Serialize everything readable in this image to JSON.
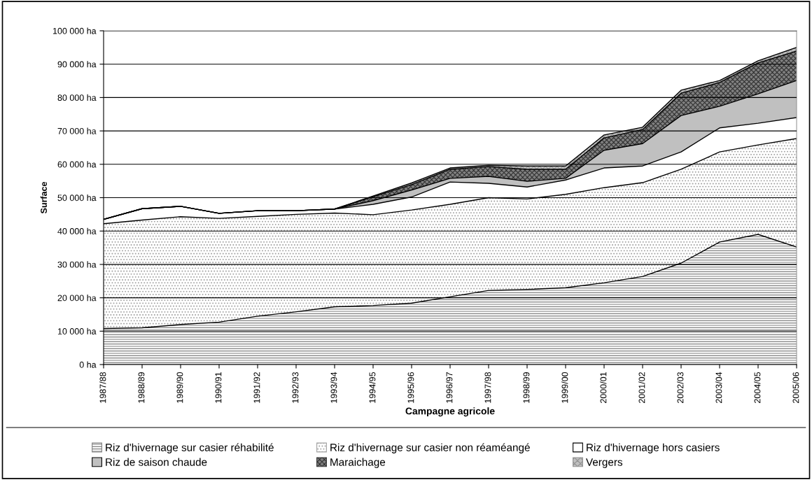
{
  "chart_data": {
    "type": "area",
    "stacked": true,
    "xlabel": "Campagne agricole",
    "ylabel": "Surface",
    "categories": [
      "1987/88",
      "1988/89",
      "1989/90",
      "1990/91",
      "1991/92",
      "1992/93",
      "1993/94",
      "1994/95",
      "1995/96",
      "1996/97",
      "1997/98",
      "1998/99",
      "1999/00",
      "2000/01",
      "2001/02",
      "2002/03",
      "2003/04",
      "2004/05",
      "2005/06"
    ],
    "series": [
      {
        "name": "Riz d'hivernage sur casier réhabilité",
        "color": "#ffffff",
        "values": [
          10800,
          11000,
          12000,
          12700,
          14500,
          15800,
          17300,
          17700,
          18400,
          20300,
          22200,
          22500,
          23000,
          24500,
          26400,
          30400,
          36700,
          39000,
          35200
        ]
      },
      {
        "name": "Riz d'hivernage sur casier non réaméangé",
        "color": "#ffffff",
        "values": [
          31400,
          32300,
          32300,
          31100,
          29900,
          29200,
          28100,
          27200,
          27900,
          27700,
          27800,
          27100,
          28000,
          28500,
          28100,
          28100,
          27000,
          26800,
          32500
        ]
      },
      {
        "name": "Riz d'hivernage hors casiers",
        "color": "#ffffff",
        "values": [
          1300,
          3400,
          3100,
          1500,
          1700,
          1100,
          1200,
          3100,
          3900,
          6700,
          4300,
          3600,
          4300,
          5900,
          5000,
          5200,
          7200,
          6500,
          6300
        ]
      },
      {
        "name": "Riz de saison chaude",
        "color": "#c0c0c0",
        "values": [
          0,
          0,
          0,
          0,
          0,
          0,
          0,
          1100,
          2100,
          1100,
          2100,
          1700,
          500,
          5300,
          6700,
          10900,
          6500,
          8800,
          11100
        ]
      },
      {
        "name": "Maraichage",
        "color": "#808080",
        "values": [
          0,
          0,
          0,
          0,
          0,
          0,
          0,
          1200,
          1600,
          2700,
          2900,
          3600,
          2700,
          3700,
          4200,
          6700,
          7100,
          9300,
          8800
        ]
      },
      {
        "name": "Vergers",
        "color": "#c0c0c0",
        "values": [
          0,
          0,
          0,
          0,
          0,
          0,
          0,
          200,
          500,
          400,
          400,
          1000,
          1000,
          900,
          700,
          900,
          600,
          600,
          1100
        ]
      }
    ],
    "ylim": [
      0,
      100000
    ],
    "yticks": [
      {
        "value": 0,
        "label": "0 ha"
      },
      {
        "value": 10000,
        "label": "10 000 ha"
      },
      {
        "value": 20000,
        "label": "20 000 ha"
      },
      {
        "value": 30000,
        "label": "30 000 ha"
      },
      {
        "value": 40000,
        "label": "40 000 ha"
      },
      {
        "value": 50000,
        "label": "50 000 ha"
      },
      {
        "value": 60000,
        "label": "60 000 ha"
      },
      {
        "value": 70000,
        "label": "70 000 ha"
      },
      {
        "value": 80000,
        "label": "80 000 ha"
      },
      {
        "value": 90000,
        "label": "90 000 ha"
      },
      {
        "value": 100000,
        "label": "100 000 ha"
      }
    ],
    "grid": "y",
    "legend": "bottom"
  }
}
